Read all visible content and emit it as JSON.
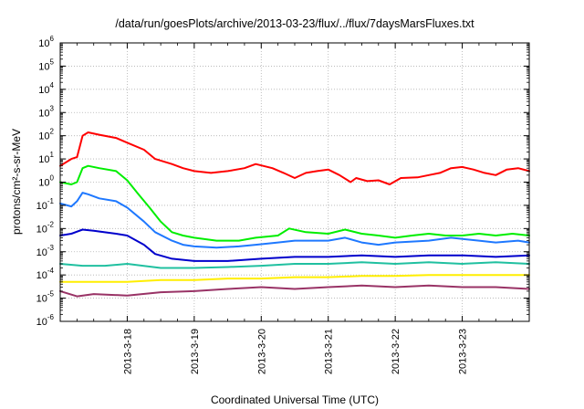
{
  "chart_data": {
    "type": "line",
    "title": "/data/run/goesPlots/archive/2013-03-23/flux/../flux/7daysMarsFluxes.txt",
    "xlabel": "Coordinated Universal Time (UTC)",
    "ylabel": "protons/cm²-s-sr-MeV",
    "x_scale": "time",
    "y_scale": "log",
    "xlim": [
      "2013-03-17T00:00",
      "2013-03-24T00:00"
    ],
    "ylim": [
      1e-06,
      1000000.0
    ],
    "x_ticks": [
      "2013-3-18",
      "2013-3-19",
      "2013-3-20",
      "2013-3-21",
      "2013-3-22",
      "2013-3-23"
    ],
    "y_ticks": [
      {
        "base": "10",
        "exp": "-6"
      },
      {
        "base": "10",
        "exp": "-5"
      },
      {
        "base": "10",
        "exp": "-4"
      },
      {
        "base": "10",
        "exp": "-3"
      },
      {
        "base": "10",
        "exp": "-2"
      },
      {
        "base": "10",
        "exp": "-1"
      },
      {
        "base": "10",
        "exp": "0"
      },
      {
        "base": "10",
        "exp": "1"
      },
      {
        "base": "10",
        "exp": "2"
      },
      {
        "base": "10",
        "exp": "3"
      },
      {
        "base": "10",
        "exp": "4"
      },
      {
        "base": "10",
        "exp": "5"
      },
      {
        "base": "10",
        "exp": "6"
      }
    ],
    "grid": true,
    "legend": "none",
    "series": [
      {
        "color": "#ff0000",
        "points": [
          [
            "2013-03-17T00:00",
            5
          ],
          [
            "2013-03-17T04:00",
            10
          ],
          [
            "2013-03-17T06:00",
            12
          ],
          [
            "2013-03-17T08:00",
            100
          ],
          [
            "2013-03-17T10:00",
            140
          ],
          [
            "2013-03-17T14:00",
            110
          ],
          [
            "2013-03-17T20:00",
            80
          ],
          [
            "2013-03-18T00:00",
            50
          ],
          [
            "2013-03-18T06:00",
            25
          ],
          [
            "2013-03-18T10:00",
            10
          ],
          [
            "2013-03-18T16:00",
            6
          ],
          [
            "2013-03-18T20:00",
            4
          ],
          [
            "2013-03-19T00:00",
            3
          ],
          [
            "2013-03-19T06:00",
            2.5
          ],
          [
            "2013-03-19T12:00",
            3
          ],
          [
            "2013-03-19T18:00",
            4
          ],
          [
            "2013-03-19T22:00",
            6
          ],
          [
            "2013-03-20T04:00",
            4
          ],
          [
            "2013-03-20T08:00",
            2.5
          ],
          [
            "2013-03-20T12:00",
            1.5
          ],
          [
            "2013-03-20T16:00",
            2.5
          ],
          [
            "2013-03-20T20:00",
            3
          ],
          [
            "2013-03-21T00:00",
            3.5
          ],
          [
            "2013-03-21T04:00",
            2
          ],
          [
            "2013-03-21T08:00",
            1
          ],
          [
            "2013-03-21T10:00",
            1.5
          ],
          [
            "2013-03-21T14:00",
            1.1
          ],
          [
            "2013-03-21T18:00",
            1.2
          ],
          [
            "2013-03-21T22:00",
            0.8
          ],
          [
            "2013-03-22T02:00",
            1.5
          ],
          [
            "2013-03-22T08:00",
            1.6
          ],
          [
            "2013-03-22T12:00",
            2
          ],
          [
            "2013-03-22T16:00",
            2.5
          ],
          [
            "2013-03-22T20:00",
            4
          ],
          [
            "2013-03-23T00:00",
            4.5
          ],
          [
            "2013-03-23T04:00",
            3.5
          ],
          [
            "2013-03-23T08:00",
            2.5
          ],
          [
            "2013-03-23T12:00",
            2
          ],
          [
            "2013-03-23T16:00",
            3.5
          ],
          [
            "2013-03-23T20:00",
            4
          ],
          [
            "2013-03-24T00:00",
            3
          ]
        ]
      },
      {
        "color": "#00ee00",
        "points": [
          [
            "2013-03-17T00:00",
            1
          ],
          [
            "2013-03-17T04:00",
            0.8
          ],
          [
            "2013-03-17T06:00",
            1
          ],
          [
            "2013-03-17T08:00",
            4
          ],
          [
            "2013-03-17T10:00",
            5
          ],
          [
            "2013-03-17T14:00",
            4
          ],
          [
            "2013-03-17T20:00",
            3
          ],
          [
            "2013-03-18T00:00",
            1.2
          ],
          [
            "2013-03-18T04:00",
            0.3
          ],
          [
            "2013-03-18T08:00",
            0.08
          ],
          [
            "2013-03-18T12:00",
            0.02
          ],
          [
            "2013-03-18T16:00",
            0.007
          ],
          [
            "2013-03-18T20:00",
            0.005
          ],
          [
            "2013-03-19T00:00",
            0.004
          ],
          [
            "2013-03-19T08:00",
            0.003
          ],
          [
            "2013-03-19T16:00",
            0.003
          ],
          [
            "2013-03-19T22:00",
            0.004
          ],
          [
            "2013-03-20T06:00",
            0.005
          ],
          [
            "2013-03-20T10:00",
            0.01
          ],
          [
            "2013-03-20T16:00",
            0.007
          ],
          [
            "2013-03-21T00:00",
            0.006
          ],
          [
            "2013-03-21T06:00",
            0.009
          ],
          [
            "2013-03-21T12:00",
            0.006
          ],
          [
            "2013-03-21T18:00",
            0.005
          ],
          [
            "2013-03-22T00:00",
            0.004
          ],
          [
            "2013-03-22T06:00",
            0.005
          ],
          [
            "2013-03-22T12:00",
            0.006
          ],
          [
            "2013-03-22T18:00",
            0.005
          ],
          [
            "2013-03-23T00:00",
            0.005
          ],
          [
            "2013-03-23T06:00",
            0.006
          ],
          [
            "2013-03-23T12:00",
            0.005
          ],
          [
            "2013-03-23T18:00",
            0.006
          ],
          [
            "2013-03-24T00:00",
            0.005
          ]
        ]
      },
      {
        "color": "#1e78ff",
        "points": [
          [
            "2013-03-17T00:00",
            0.12
          ],
          [
            "2013-03-17T04:00",
            0.09
          ],
          [
            "2013-03-17T06:00",
            0.15
          ],
          [
            "2013-03-17T08:00",
            0.35
          ],
          [
            "2013-03-17T10:00",
            0.3
          ],
          [
            "2013-03-17T14:00",
            0.2
          ],
          [
            "2013-03-17T20:00",
            0.15
          ],
          [
            "2013-03-18T00:00",
            0.08
          ],
          [
            "2013-03-18T06:00",
            0.02
          ],
          [
            "2013-03-18T10:00",
            0.007
          ],
          [
            "2013-03-18T16:00",
            0.003
          ],
          [
            "2013-03-18T20:00",
            0.002
          ],
          [
            "2013-03-19T00:00",
            0.0017
          ],
          [
            "2013-03-19T08:00",
            0.0015
          ],
          [
            "2013-03-19T16:00",
            0.0017
          ],
          [
            "2013-03-19T22:00",
            0.002
          ],
          [
            "2013-03-20T06:00",
            0.0025
          ],
          [
            "2013-03-20T12:00",
            0.003
          ],
          [
            "2013-03-21T00:00",
            0.003
          ],
          [
            "2013-03-21T06:00",
            0.004
          ],
          [
            "2013-03-21T12:00",
            0.0025
          ],
          [
            "2013-03-21T18:00",
            0.002
          ],
          [
            "2013-03-22T00:00",
            0.0025
          ],
          [
            "2013-03-22T12:00",
            0.003
          ],
          [
            "2013-03-22T20:00",
            0.004
          ],
          [
            "2013-03-23T06:00",
            0.003
          ],
          [
            "2013-03-23T12:00",
            0.0025
          ],
          [
            "2013-03-23T20:00",
            0.003
          ],
          [
            "2013-03-24T00:00",
            0.0025
          ]
        ]
      },
      {
        "color": "#0000cc",
        "points": [
          [
            "2013-03-17T00:00",
            0.005
          ],
          [
            "2013-03-17T04:00",
            0.006
          ],
          [
            "2013-03-17T08:00",
            0.009
          ],
          [
            "2013-03-17T12:00",
            0.008
          ],
          [
            "2013-03-17T20:00",
            0.006
          ],
          [
            "2013-03-18T00:00",
            0.005
          ],
          [
            "2013-03-18T06:00",
            0.002
          ],
          [
            "2013-03-18T10:00",
            0.0008
          ],
          [
            "2013-03-18T16:00",
            0.0005
          ],
          [
            "2013-03-19T00:00",
            0.0004
          ],
          [
            "2013-03-19T12:00",
            0.0004
          ],
          [
            "2013-03-20T00:00",
            0.0005
          ],
          [
            "2013-03-20T12:00",
            0.0006
          ],
          [
            "2013-03-21T00:00",
            0.0006
          ],
          [
            "2013-03-21T12:00",
            0.0007
          ],
          [
            "2013-03-22T00:00",
            0.0006
          ],
          [
            "2013-03-22T12:00",
            0.0007
          ],
          [
            "2013-03-23T00:00",
            0.0007
          ],
          [
            "2013-03-23T12:00",
            0.0006
          ],
          [
            "2013-03-24T00:00",
            0.0007
          ]
        ]
      },
      {
        "color": "#20c0a0",
        "points": [
          [
            "2013-03-17T00:00",
            0.0003
          ],
          [
            "2013-03-17T08:00",
            0.00025
          ],
          [
            "2013-03-17T16:00",
            0.00025
          ],
          [
            "2013-03-18T00:00",
            0.0003
          ],
          [
            "2013-03-18T12:00",
            0.0002
          ],
          [
            "2013-03-19T00:00",
            0.0002
          ],
          [
            "2013-03-19T12:00",
            0.00022
          ],
          [
            "2013-03-20T00:00",
            0.00025
          ],
          [
            "2013-03-20T12:00",
            0.0003
          ],
          [
            "2013-03-21T00:00",
            0.0003
          ],
          [
            "2013-03-21T12:00",
            0.00035
          ],
          [
            "2013-03-22T00:00",
            0.0003
          ],
          [
            "2013-03-22T12:00",
            0.00035
          ],
          [
            "2013-03-23T00:00",
            0.0003
          ],
          [
            "2013-03-23T12:00",
            0.00035
          ],
          [
            "2013-03-24T00:00",
            0.0003
          ]
        ]
      },
      {
        "color": "#ffee00",
        "points": [
          [
            "2013-03-17T00:00",
            5e-05
          ],
          [
            "2013-03-17T12:00",
            5e-05
          ],
          [
            "2013-03-18T00:00",
            5e-05
          ],
          [
            "2013-03-18T12:00",
            6e-05
          ],
          [
            "2013-03-19T00:00",
            6e-05
          ],
          [
            "2013-03-19T12:00",
            7e-05
          ],
          [
            "2013-03-20T00:00",
            7e-05
          ],
          [
            "2013-03-20T12:00",
            8e-05
          ],
          [
            "2013-03-21T00:00",
            8e-05
          ],
          [
            "2013-03-21T12:00",
            9e-05
          ],
          [
            "2013-03-22T00:00",
            9e-05
          ],
          [
            "2013-03-22T12:00",
            0.0001
          ],
          [
            "2013-03-23T00:00",
            0.0001
          ],
          [
            "2013-03-23T12:00",
            0.0001
          ],
          [
            "2013-03-24T00:00",
            0.0001
          ]
        ]
      },
      {
        "color": "#993366",
        "points": [
          [
            "2013-03-17T00:00",
            2e-05
          ],
          [
            "2013-03-17T06:00",
            1.2e-05
          ],
          [
            "2013-03-17T12:00",
            1.5e-05
          ],
          [
            "2013-03-18T00:00",
            1.3e-05
          ],
          [
            "2013-03-18T12:00",
            1.8e-05
          ],
          [
            "2013-03-19T00:00",
            2e-05
          ],
          [
            "2013-03-19T12:00",
            2.5e-05
          ],
          [
            "2013-03-20T00:00",
            3e-05
          ],
          [
            "2013-03-20T12:00",
            2.5e-05
          ],
          [
            "2013-03-21T00:00",
            3e-05
          ],
          [
            "2013-03-21T12:00",
            3.5e-05
          ],
          [
            "2013-03-22T00:00",
            3e-05
          ],
          [
            "2013-03-22T12:00",
            3.5e-05
          ],
          [
            "2013-03-23T00:00",
            3e-05
          ],
          [
            "2013-03-23T12:00",
            3e-05
          ],
          [
            "2013-03-24T00:00",
            2.5e-05
          ]
        ]
      }
    ]
  }
}
